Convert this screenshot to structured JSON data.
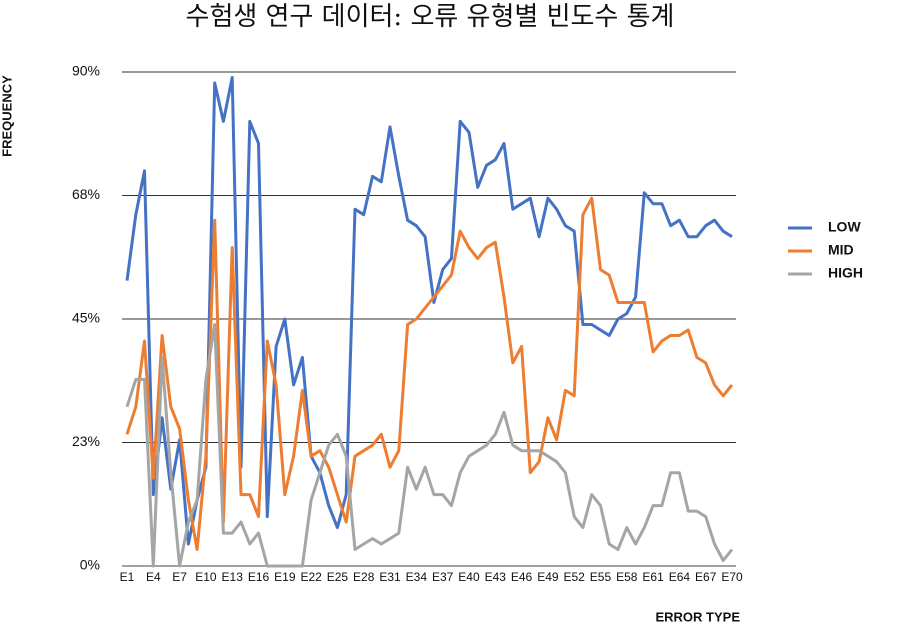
{
  "chart_data": {
    "type": "line",
    "title": "수험생 연구 데이터: 오류 유형별 빈도수 통계",
    "x_label": "ERROR TYPE",
    "y_label": "FREQUENCY",
    "categories": [
      "E1",
      null,
      null,
      "E4",
      null,
      null,
      "E7",
      null,
      null,
      "E10",
      null,
      null,
      "E13",
      null,
      null,
      "E16",
      null,
      null,
      "E19",
      null,
      null,
      "E22",
      null,
      null,
      "E25",
      null,
      null,
      "E28",
      null,
      null,
      "E31",
      null,
      null,
      "E34",
      null,
      null,
      "E37",
      null,
      null,
      "E40",
      null,
      null,
      "E43",
      null,
      null,
      "E46",
      null,
      null,
      "E49",
      null,
      null,
      "E52",
      null,
      null,
      "E55",
      null,
      null,
      "E58",
      null,
      null,
      "E61",
      null,
      null,
      "E64",
      null,
      null,
      "E67",
      null,
      null,
      "E70"
    ],
    "series": [
      {
        "name": "LOW",
        "color": "#4472c4",
        "values": [
          52,
          64,
          72,
          13,
          27,
          14,
          23,
          4,
          12,
          18,
          88,
          81,
          89,
          18,
          81,
          77,
          9,
          40,
          45,
          33,
          38,
          20,
          17,
          11,
          7,
          13,
          65,
          64,
          71,
          70,
          80,
          71,
          63,
          62,
          60,
          48,
          54,
          56,
          81,
          79,
          69,
          73,
          74,
          77,
          65,
          66,
          67,
          60,
          67,
          65,
          62,
          61,
          44,
          44,
          43,
          42,
          45,
          46,
          49,
          68,
          66,
          66,
          62,
          63,
          60,
          60,
          62,
          63,
          61,
          60
        ]
      },
      {
        "name": "MID",
        "color": "#ed7d31",
        "values": [
          24,
          29,
          41,
          16,
          42,
          29,
          25,
          12,
          3,
          20,
          63,
          8,
          58,
          13,
          13,
          9,
          41,
          33,
          13,
          20,
          32,
          20,
          21,
          18,
          13,
          8,
          20,
          21,
          22,
          24,
          18,
          21,
          44,
          45,
          47,
          49,
          51,
          53,
          61,
          58,
          56,
          58,
          59,
          49,
          37,
          40,
          17,
          19,
          27,
          23,
          32,
          31,
          64,
          67,
          54,
          53,
          48,
          48,
          48,
          48,
          39,
          41,
          42,
          42,
          43,
          38,
          37,
          33,
          31,
          33
        ]
      },
      {
        "name": "HIGH",
        "color": "#a5a5a5",
        "values": [
          29,
          34,
          34,
          0,
          38,
          17,
          0,
          8,
          12,
          34,
          44,
          6,
          6,
          8,
          4,
          6,
          0,
          0,
          0,
          0,
          0,
          12,
          17,
          22,
          24,
          20,
          3,
          4,
          5,
          4,
          5,
          6,
          18,
          14,
          18,
          13,
          13,
          11,
          17,
          20,
          21,
          22,
          24,
          28,
          22,
          21,
          21,
          21,
          20,
          19,
          17,
          9,
          7,
          13,
          11,
          4,
          3,
          7,
          4,
          7,
          11,
          11,
          17,
          17,
          10,
          10,
          9,
          4,
          1,
          3
        ]
      }
    ],
    "ylim": [
      0,
      90
    ],
    "yticks": [
      {
        "value": 0,
        "label": "0%"
      },
      {
        "value": 22.5,
        "label": "23%"
      },
      {
        "value": 45,
        "label": "45%"
      },
      {
        "value": 67.5,
        "label": "68%"
      },
      {
        "value": 90,
        "label": "90%"
      }
    ],
    "grid": true,
    "legend": "right"
  }
}
